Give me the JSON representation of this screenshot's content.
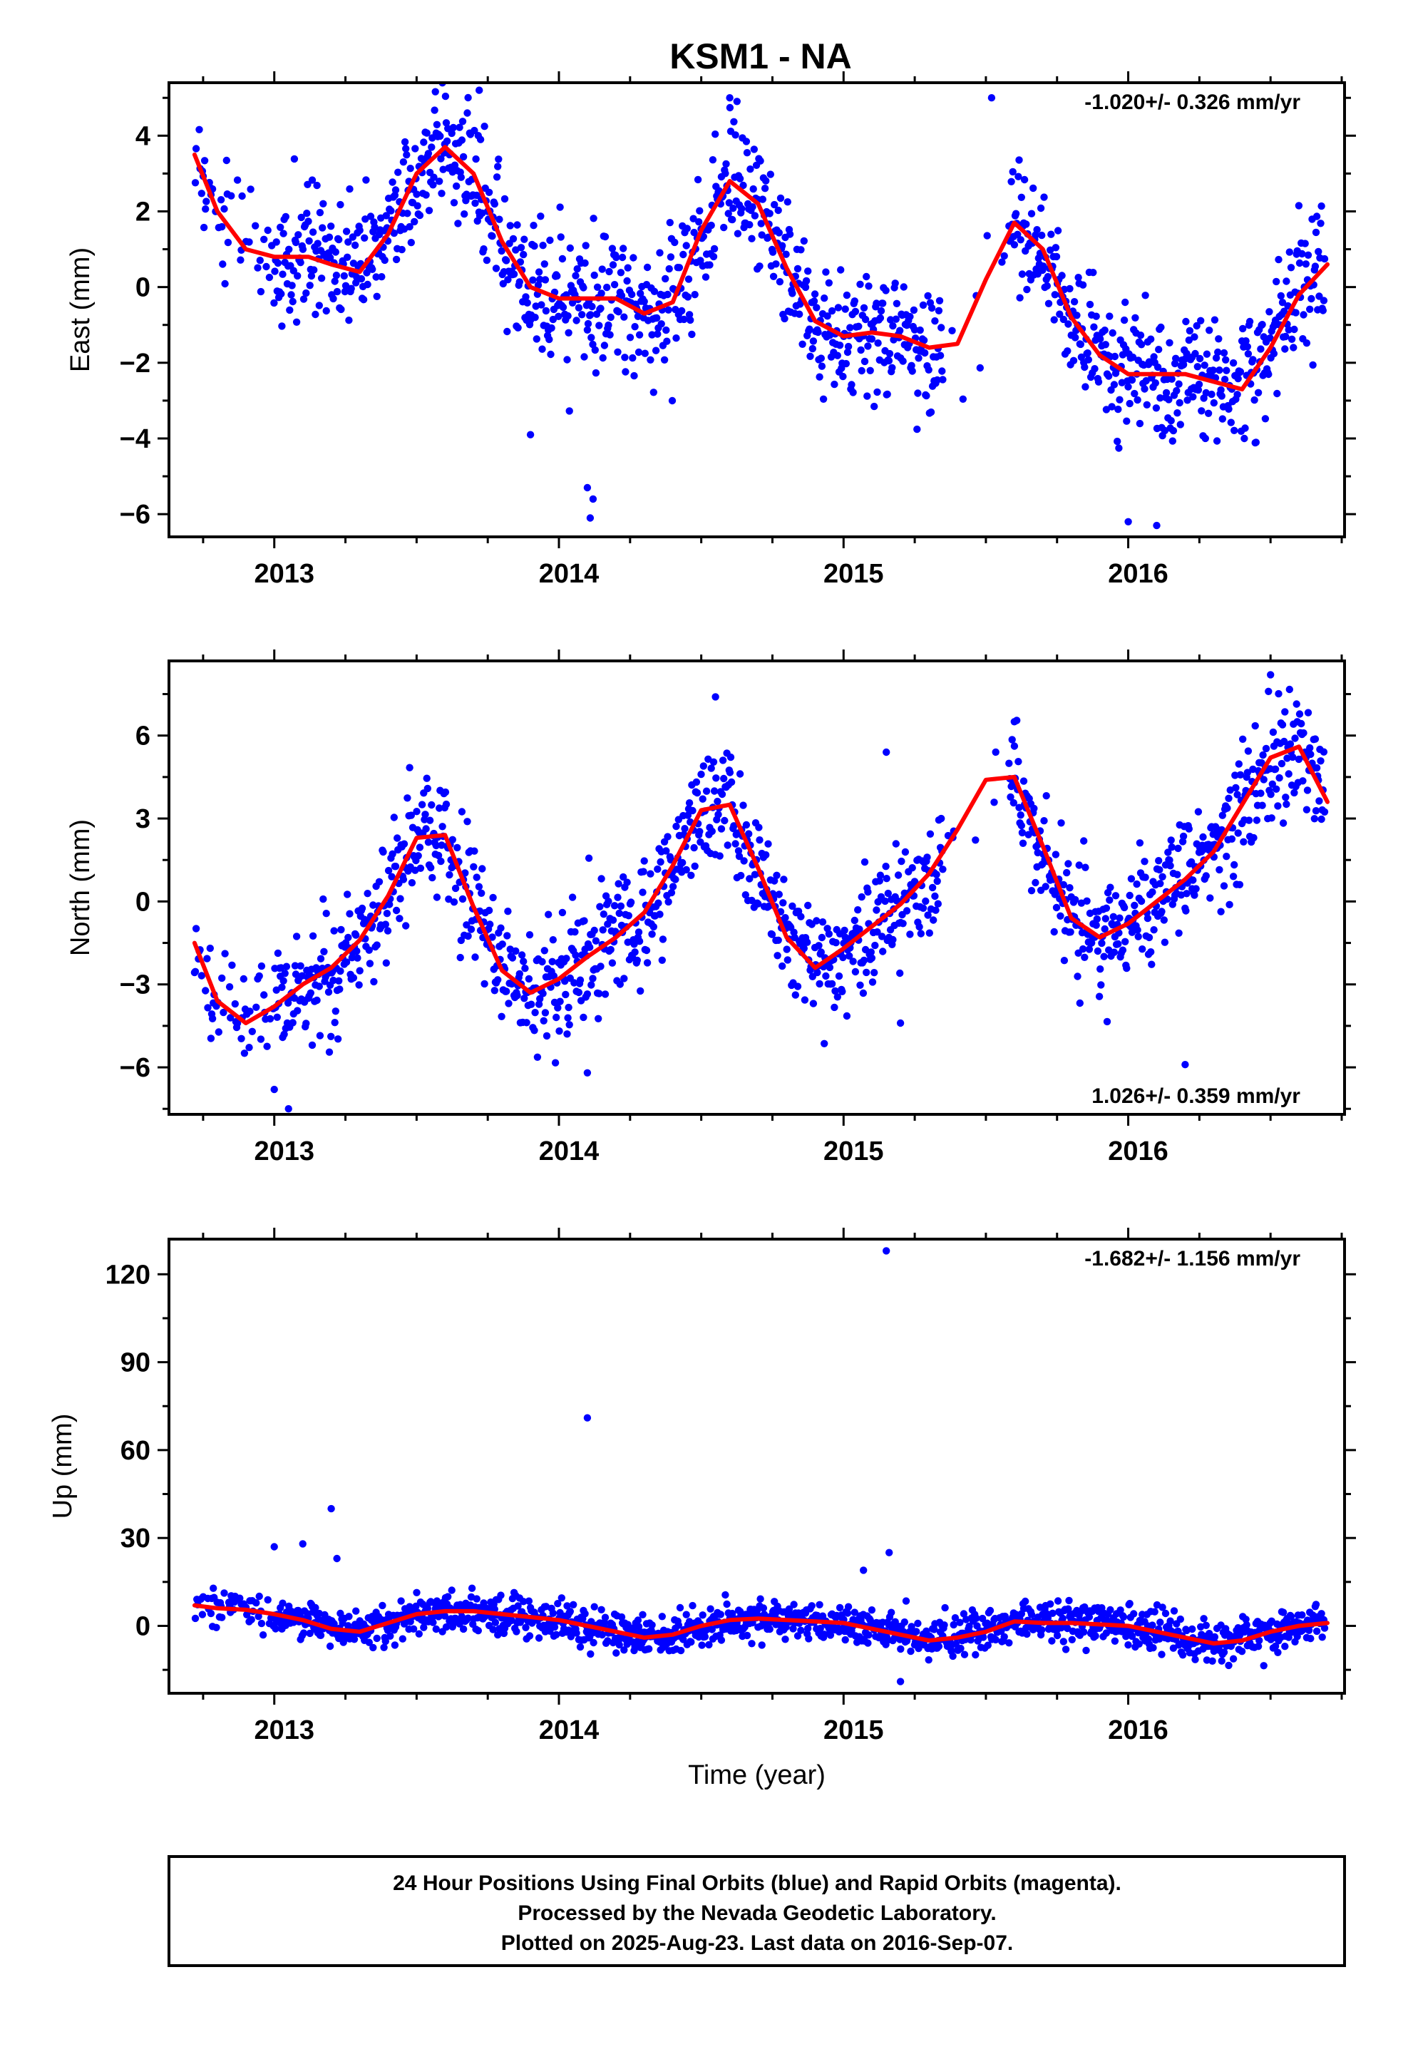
{
  "title": "KSM1 - NA",
  "footer": {
    "lines": [
      "24 Hour Positions Using Final Orbits (blue) and Rapid Orbits (magenta).",
      "Processed by the Nevada Geodetic Laboratory.",
      "Plotted on 2025-Aug-23. Last data on 2016-Sep-07."
    ]
  },
  "colors": {
    "points": "#0000ff",
    "fit": "#ff0000",
    "frame": "#000000"
  },
  "chart_data": [
    {
      "type": "scatter",
      "ylabel": "East (mm)",
      "xlabel": "",
      "rate": "-1.020+/- 0.326 mm/yr",
      "rate_position": "top-right",
      "xlim": [
        2012.63,
        2016.76
      ],
      "ylim": [
        -6.6,
        5.4
      ],
      "xticks": [
        2013,
        2014,
        2015,
        2016
      ],
      "xtick_labels": [
        "2013",
        "2014",
        "2015",
        "2016"
      ],
      "yticks": [
        -6,
        -4,
        -2,
        0,
        2,
        4
      ],
      "ytick_labels": [
        "−6",
        "−4",
        "−2",
        "0",
        "2",
        "4"
      ],
      "fit_line": {
        "x": [
          2012.72,
          2012.8,
          2012.9,
          2013.0,
          2013.12,
          2013.2,
          2013.3,
          2013.4,
          2013.5,
          2013.6,
          2013.7,
          2013.8,
          2013.9,
          2014.0,
          2014.1,
          2014.2,
          2014.3,
          2014.4,
          2014.5,
          2014.6,
          2014.7,
          2014.8,
          2014.9,
          2015.0,
          2015.1,
          2015.2,
          2015.3,
          2015.4,
          2015.5,
          2015.6,
          2015.7,
          2015.8,
          2015.9,
          2016.0,
          2016.1,
          2016.2,
          2016.3,
          2016.4,
          2016.5,
          2016.6,
          2016.7
        ],
        "y": [
          3.5,
          2.0,
          1.0,
          0.8,
          0.8,
          0.6,
          0.4,
          1.4,
          3.0,
          3.7,
          3.0,
          1.2,
          0.0,
          -0.3,
          -0.3,
          -0.3,
          -0.7,
          -0.4,
          1.5,
          2.8,
          2.2,
          0.5,
          -0.9,
          -1.3,
          -1.2,
          -1.3,
          -1.6,
          -1.5,
          0.2,
          1.7,
          1.0,
          -0.8,
          -1.8,
          -2.3,
          -2.3,
          -2.3,
          -2.5,
          -2.7,
          -1.6,
          -0.2,
          0.6
        ]
      },
      "outliers": [
        {
          "x": 2014.11,
          "y": -6.1
        },
        {
          "x": 2014.1,
          "y": -5.3
        },
        {
          "x": 2014.12,
          "y": -5.6
        },
        {
          "x": 2013.72,
          "y": 5.2
        },
        {
          "x": 2014.6,
          "y": 5.0
        },
        {
          "x": 2015.52,
          "y": 5.0
        },
        {
          "x": 2016.0,
          "y": -6.2
        },
        {
          "x": 2016.1,
          "y": -6.3
        },
        {
          "x": 2013.9,
          "y": -3.9
        }
      ]
    },
    {
      "type": "scatter",
      "ylabel": "North (mm)",
      "xlabel": "",
      "rate": "1.026+/- 0.359 mm/yr",
      "rate_position": "bottom-right",
      "xlim": [
        2012.63,
        2016.76
      ],
      "ylim": [
        -7.7,
        8.7
      ],
      "xticks": [
        2013,
        2014,
        2015,
        2016
      ],
      "xtick_labels": [
        "2013",
        "2014",
        "2015",
        "2016"
      ],
      "yticks": [
        -6,
        -3,
        0,
        3,
        6
      ],
      "ytick_labels": [
        "−6",
        "−3",
        "0",
        "3",
        "6"
      ],
      "fit_line": {
        "x": [
          2012.72,
          2012.8,
          2012.9,
          2013.0,
          2013.1,
          2013.2,
          2013.3,
          2013.4,
          2013.5,
          2013.6,
          2013.7,
          2013.8,
          2013.9,
          2014.0,
          2014.1,
          2014.2,
          2014.3,
          2014.4,
          2014.5,
          2014.6,
          2014.7,
          2014.8,
          2014.9,
          2015.0,
          2015.1,
          2015.2,
          2015.3,
          2015.4,
          2015.5,
          2015.6,
          2015.7,
          2015.8,
          2015.9,
          2016.0,
          2016.1,
          2016.2,
          2016.3,
          2016.4,
          2016.5,
          2016.6,
          2016.7
        ],
        "y": [
          -1.5,
          -3.6,
          -4.4,
          -3.8,
          -3.0,
          -2.4,
          -1.4,
          0.2,
          2.3,
          2.4,
          -0.2,
          -2.5,
          -3.3,
          -2.8,
          -2.0,
          -1.3,
          -0.4,
          1.3,
          3.3,
          3.5,
          1.2,
          -1.3,
          -2.4,
          -1.7,
          -0.9,
          -0.1,
          1.0,
          2.6,
          4.4,
          4.5,
          2.0,
          -0.6,
          -1.3,
          -0.8,
          0.0,
          0.8,
          1.8,
          3.5,
          5.2,
          5.6,
          3.6
        ]
      },
      "outliers": [
        {
          "x": 2013.05,
          "y": -7.5
        },
        {
          "x": 2013.0,
          "y": -6.8
        },
        {
          "x": 2016.2,
          "y": -5.9
        },
        {
          "x": 2014.55,
          "y": 7.4
        },
        {
          "x": 2016.5,
          "y": 8.2
        },
        {
          "x": 2015.6,
          "y": 6.5
        },
        {
          "x": 2015.15,
          "y": 5.4
        },
        {
          "x": 2014.1,
          "y": -6.2
        },
        {
          "x": 2015.2,
          "y": -4.4
        }
      ]
    },
    {
      "type": "scatter",
      "ylabel": "Up (mm)",
      "xlabel": "Time (year)",
      "rate": "-1.682+/- 1.156 mm/yr",
      "rate_position": "top-right",
      "xlim": [
        2012.63,
        2016.76
      ],
      "ylim": [
        -23,
        132
      ],
      "xticks": [
        2013,
        2014,
        2015,
        2016
      ],
      "xtick_labels": [
        "2013",
        "2014",
        "2015",
        "2016"
      ],
      "yticks": [
        0,
        30,
        60,
        90,
        120
      ],
      "ytick_labels": [
        "0",
        "30",
        "60",
        "90",
        "120"
      ],
      "fit_line": {
        "x": [
          2012.72,
          2012.8,
          2012.9,
          2013.0,
          2013.1,
          2013.2,
          2013.3,
          2013.4,
          2013.5,
          2013.6,
          2013.7,
          2013.8,
          2013.9,
          2014.0,
          2014.1,
          2014.2,
          2014.3,
          2014.4,
          2014.5,
          2014.6,
          2014.7,
          2014.8,
          2014.9,
          2015.0,
          2015.1,
          2015.2,
          2015.3,
          2015.4,
          2015.5,
          2015.6,
          2015.7,
          2015.8,
          2015.9,
          2016.0,
          2016.1,
          2016.2,
          2016.3,
          2016.4,
          2016.5,
          2016.6,
          2016.7
        ],
        "y": [
          7,
          6,
          5.5,
          4,
          2,
          -1,
          -2,
          1,
          4,
          5,
          5,
          4,
          3,
          2,
          0,
          -2,
          -4,
          -3,
          0,
          2,
          2.5,
          2,
          1.5,
          1,
          -1,
          -3,
          -5,
          -4,
          -2,
          1.5,
          1,
          1,
          0.5,
          0,
          -2,
          -4,
          -6,
          -5,
          -2,
          0,
          1
        ]
      },
      "outliers": [
        {
          "x": 2015.15,
          "y": 128
        },
        {
          "x": 2014.1,
          "y": 71
        },
        {
          "x": 2013.2,
          "y": 40
        },
        {
          "x": 2013.22,
          "y": 23
        },
        {
          "x": 2013.1,
          "y": 28
        },
        {
          "x": 2013.0,
          "y": 27
        },
        {
          "x": 2015.16,
          "y": 25
        },
        {
          "x": 2015.07,
          "y": 19
        },
        {
          "x": 2015.2,
          "y": -19
        }
      ]
    }
  ]
}
